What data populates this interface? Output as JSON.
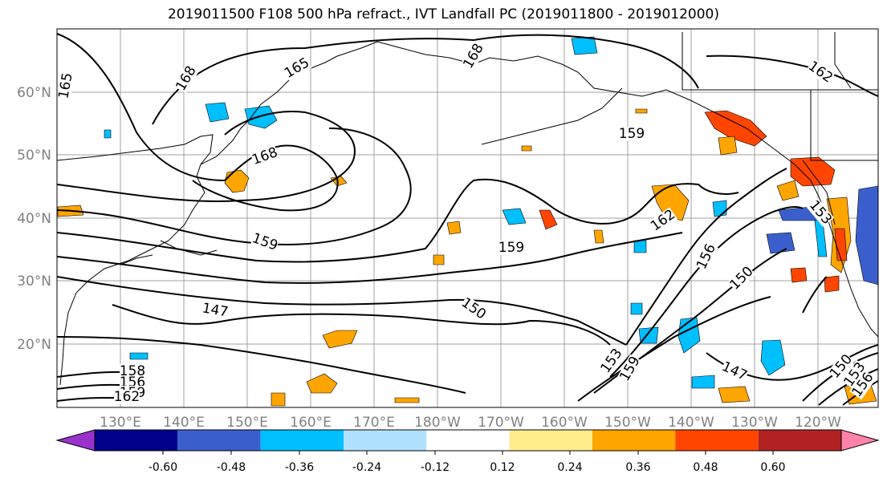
{
  "title": "2019011500 F108 500 hPa refract., IVT Landfall PC (2019011800 - 2019012000)",
  "map": {
    "lon_labels": [
      "130°E",
      "140°E",
      "150°E",
      "160°E",
      "170°E",
      "180°W",
      "170°W",
      "160°W",
      "150°W",
      "140°W",
      "130°W",
      "120°W"
    ],
    "lat_labels": [
      "60°N",
      "50°N",
      "40°N",
      "30°N",
      "20°N"
    ],
    "contour_labels": [
      "165",
      "168",
      "165",
      "168",
      "162",
      "168",
      "159",
      "159",
      "162",
      "153",
      "159",
      "156",
      "150",
      "147",
      "150",
      "153",
      "159",
      "147",
      "150",
      "153",
      "156",
      "158",
      "156",
      "159",
      "162"
    ]
  },
  "colorbar": {
    "ticks": [
      "-0.60",
      "-0.48",
      "-0.36",
      "-0.24",
      "-0.12",
      "0.12",
      "0.24",
      "0.36",
      "0.48",
      "0.60"
    ],
    "colors": [
      "#9932cc",
      "#00008b",
      "#3a5fcd",
      "#00bfff",
      "#b0e2ff",
      "#ffffff",
      "#ffec8b",
      "#ffa500",
      "#ff4500",
      "#b22222",
      "#ff82ab"
    ]
  }
}
